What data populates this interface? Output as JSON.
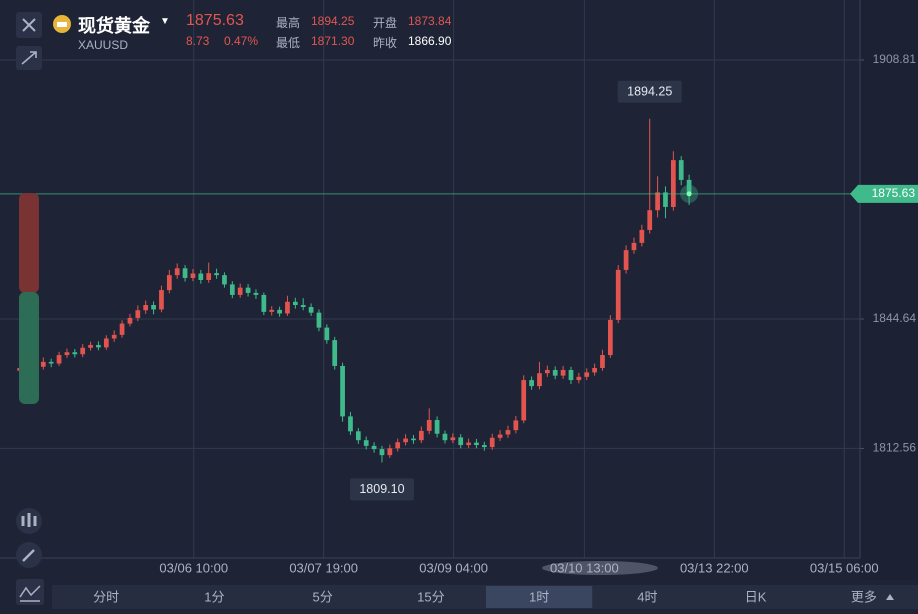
{
  "header": {
    "title": "现货黄金",
    "symbol": "XAUUSD",
    "price": "1875.63",
    "change": "8.73",
    "change_pct": "0.47%",
    "stats": [
      {
        "label": "最高",
        "value": "1894.25"
      },
      {
        "label": "开盘",
        "value": "1873.84"
      },
      {
        "label": "最低",
        "value": "1871.30"
      },
      {
        "label": "昨收",
        "value": "1866.90"
      }
    ]
  },
  "tabs": [
    "分时",
    "1分",
    "5分",
    "15分",
    "1时",
    "4时",
    "日K",
    "更多"
  ],
  "active_tab": 4,
  "chart_data": {
    "type": "candlestick",
    "up_color": "#e2554f",
    "down_color": "#3fbb8b",
    "grid": true,
    "xlim": [
      -2.5,
      106.7
    ],
    "xticks": [
      {
        "value": 22.1,
        "label": "03/06 10:00"
      },
      {
        "value": 38.6,
        "label": "03/07 19:00"
      },
      {
        "value": 55.1,
        "label": "03/09 04:00"
      },
      {
        "value": 71.7,
        "label": "03/10 13:00"
      },
      {
        "value": 88.2,
        "label": "03/13 22:00"
      },
      {
        "value": 104.7,
        "label": "03/15 06:00"
      }
    ],
    "ylim": [
      1785.41,
      1923.68
    ],
    "yticks": [
      1908.81,
      1844.64,
      1812.56
    ],
    "last_price": 1875.63,
    "annotations": [
      {
        "value": 1894.25,
        "label": "1894.25"
      },
      {
        "value": 1809.1,
        "label": "1809.10"
      }
    ],
    "open": [
      1831.8,
      1832.5,
      1833.2,
      1832.8,
      1834.0,
      1833.6,
      1835.7,
      1836.4,
      1835.9,
      1837.5,
      1838.2,
      1837.6,
      1839.8,
      1840.7,
      1843.5,
      1844.9,
      1846.8,
      1848.1,
      1847.0,
      1851.8,
      1855.5,
      1857.2,
      1854.8,
      1855.9,
      1854.3,
      1856.0,
      1855.5,
      1853.2,
      1850.6,
      1852.4,
      1851.1,
      1850.6,
      1846.4,
      1846.9,
      1846.0,
      1848.9,
      1848.1,
      1847.6,
      1846.2,
      1842.5,
      1839.4,
      1833.0,
      1820.5,
      1816.8,
      1814.6,
      1813.2,
      1812.4,
      1810.9,
      1812.6,
      1814.1,
      1815.0,
      1814.6,
      1816.9,
      1819.6,
      1816.2,
      1814.6,
      1815.3,
      1813.4,
      1814.0,
      1813.4,
      1812.9,
      1815.2,
      1816.0,
      1817.1,
      1819.5,
      1829.5,
      1828.0,
      1831.2,
      1832.0,
      1830.6,
      1832.0,
      1829.5,
      1830.3,
      1831.4,
      1832.5,
      1835.7,
      1844.4,
      1856.8,
      1861.7,
      1863.5,
      1866.7,
      1871.6,
      1876.0,
      1872.4,
      1884.0,
      1879.1
    ],
    "high": [
      1833.4,
      1834.1,
      1834.0,
      1835.1,
      1834.8,
      1836.5,
      1837.3,
      1837.2,
      1838.4,
      1839.0,
      1839.1,
      1840.6,
      1841.8,
      1844.3,
      1845.9,
      1848.0,
      1849.2,
      1849.0,
      1852.9,
      1856.8,
      1858.4,
      1858.0,
      1857.0,
      1856.8,
      1858.6,
      1857.1,
      1856.2,
      1854.0,
      1853.4,
      1853.3,
      1852.0,
      1851.2,
      1847.8,
      1847.7,
      1850.4,
      1849.9,
      1849.8,
      1848.5,
      1847.0,
      1843.3,
      1840.2,
      1833.8,
      1821.6,
      1817.6,
      1815.5,
      1814.1,
      1813.2,
      1813.5,
      1815.0,
      1816.1,
      1815.9,
      1818.0,
      1822.5,
      1820.5,
      1817.0,
      1816.3,
      1816.1,
      1815.0,
      1814.9,
      1814.2,
      1816.2,
      1817.1,
      1818.2,
      1820.6,
      1830.7,
      1830.4,
      1834.0,
      1833.1,
      1832.9,
      1833.0,
      1832.8,
      1831.3,
      1832.4,
      1833.6,
      1837.0,
      1845.6,
      1858.0,
      1862.9,
      1864.8,
      1868.0,
      1894.25,
      1880.0,
      1877.5,
      1886.2,
      1885.0,
      1880.4
    ],
    "low": [
      1830.9,
      1831.7,
      1832.0,
      1832.1,
      1832.7,
      1833.0,
      1835.0,
      1835.1,
      1835.2,
      1836.8,
      1836.9,
      1837.0,
      1839.0,
      1840.0,
      1842.8,
      1844.1,
      1845.9,
      1845.8,
      1846.3,
      1851.0,
      1854.6,
      1853.9,
      1854.0,
      1853.4,
      1853.6,
      1854.6,
      1852.4,
      1849.8,
      1849.9,
      1850.2,
      1849.6,
      1845.6,
      1845.5,
      1845.2,
      1845.4,
      1847.2,
      1846.8,
      1845.4,
      1841.6,
      1838.5,
      1832.1,
      1819.2,
      1815.9,
      1813.7,
      1812.3,
      1811.5,
      1809.1,
      1810.2,
      1811.8,
      1813.3,
      1813.7,
      1813.9,
      1816.1,
      1815.3,
      1813.8,
      1813.9,
      1812.6,
      1812.7,
      1812.6,
      1812.0,
      1812.2,
      1814.4,
      1815.2,
      1816.3,
      1818.8,
      1827.1,
      1827.2,
      1830.3,
      1829.7,
      1829.8,
      1828.5,
      1828.7,
      1829.5,
      1830.6,
      1831.8,
      1835.0,
      1843.6,
      1855.9,
      1860.8,
      1862.6,
      1865.8,
      1869.8,
      1869.6,
      1871.5,
      1877.8,
      1872.9
    ],
    "close": [
      1832.5,
      1833.2,
      1832.8,
      1834.0,
      1833.6,
      1835.7,
      1836.4,
      1835.9,
      1837.5,
      1838.2,
      1837.6,
      1839.8,
      1840.7,
      1843.5,
      1844.9,
      1846.8,
      1848.1,
      1847.0,
      1851.8,
      1855.5,
      1857.2,
      1854.8,
      1855.9,
      1854.3,
      1856.0,
      1855.5,
      1853.2,
      1850.6,
      1852.4,
      1851.1,
      1850.6,
      1846.4,
      1846.9,
      1846.0,
      1848.9,
      1848.1,
      1847.6,
      1846.2,
      1842.5,
      1839.4,
      1833.0,
      1820.5,
      1816.8,
      1814.6,
      1813.2,
      1812.4,
      1810.9,
      1812.6,
      1814.1,
      1815.0,
      1814.6,
      1816.9,
      1819.6,
      1816.2,
      1814.6,
      1815.3,
      1813.4,
      1814.0,
      1813.4,
      1812.9,
      1815.2,
      1816.0,
      1817.1,
      1819.5,
      1829.5,
      1828.0,
      1831.2,
      1832.0,
      1830.6,
      1832.0,
      1829.5,
      1830.3,
      1831.4,
      1832.5,
      1835.7,
      1844.4,
      1856.8,
      1861.7,
      1863.5,
      1866.7,
      1871.6,
      1876.0,
      1872.4,
      1884.0,
      1879.1,
      1875.63
    ]
  }
}
